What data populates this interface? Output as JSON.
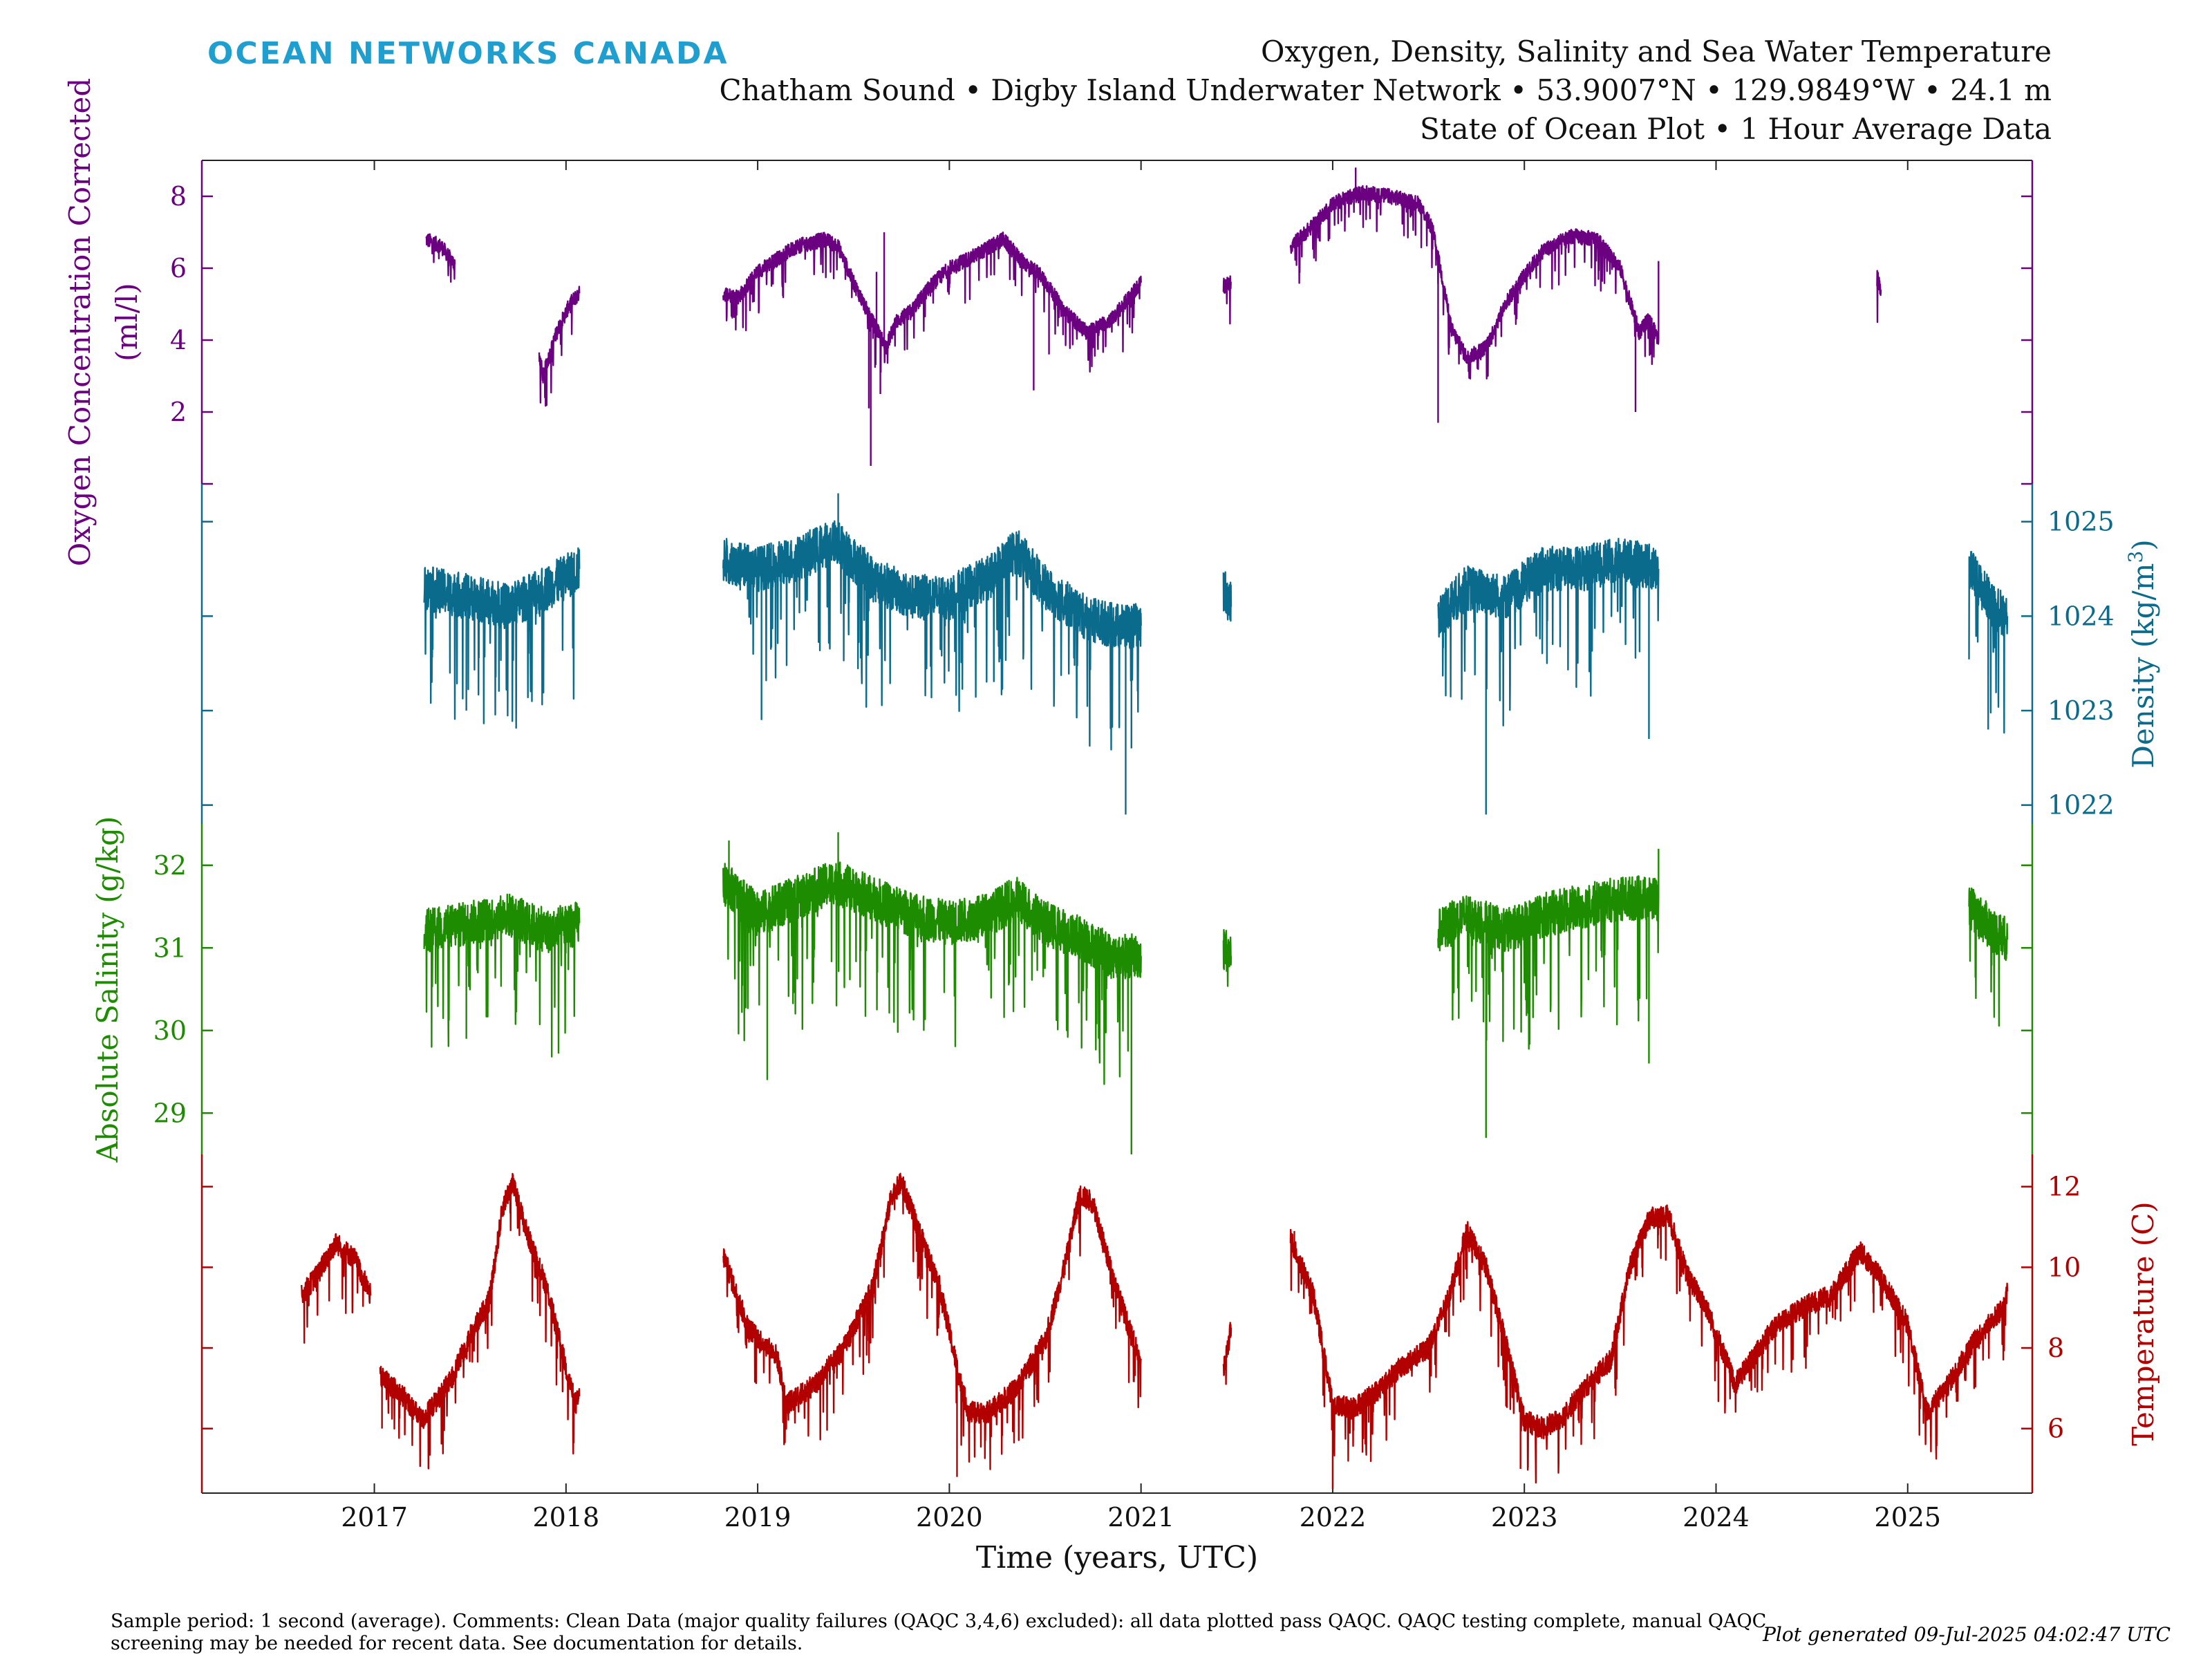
{
  "header": {
    "brand": "OCEAN NETWORKS CANADA",
    "title": "Oxygen, Density, Salinity and Sea Water Temperature",
    "subtitle": "Chatham Sound • Digby Island Underwater Network • 53.9007°N • 129.9849°W • 24.1 m",
    "subtitle2": "State of Ocean Plot • 1 Hour Average Data"
  },
  "footer": {
    "comments": "Sample period: 1 second (average). Comments: Clean Data (major quality failures (QAQC 3,4,6) excluded): all data plotted pass QAQC. QAQC testing complete, manual QAQC screening may be needed for recent data. See documentation for details.",
    "generated": "Plot generated 09-Jul-2025 04:02:47 UTC"
  },
  "colors": {
    "oxygen": "#6b0080",
    "density": "#0a6b8c",
    "salinity": "#1e8c00",
    "temperature": "#b20000",
    "brand": "#1f9fd0"
  },
  "chart_data": {
    "type": "line",
    "xlabel": "Time (years, UTC)",
    "xlim": [
      2016.1,
      2025.65
    ],
    "x_ticks": [
      2017,
      2018,
      2019,
      2020,
      2021,
      2022,
      2023,
      2024,
      2025
    ],
    "x_tick_labels": [
      "2017",
      "2018",
      "2019",
      "2020",
      "2021",
      "2022",
      "2023",
      "2024",
      "2025"
    ],
    "series": [
      {
        "key": "oxygen",
        "name": "Oxygen Concentration Corrected",
        "label": "Oxygen Concentration Corrected",
        "unit": "(ml/l)",
        "axis_side": "left",
        "ylim": [
          0.0,
          9.0
        ],
        "ticks": [
          2,
          4,
          6,
          8
        ],
        "extra_ticks": [
          0
        ],
        "noise": 0.35,
        "segments": [
          [
            [
              2017.27,
              6.8
            ],
            [
              2017.35,
              6.6
            ],
            [
              2017.42,
              6.1
            ]
          ],
          [
            [
              2017.86,
              3.6
            ],
            [
              2017.88,
              3.0
            ],
            [
              2017.95,
              4.2
            ],
            [
              2018.02,
              5.0
            ],
            [
              2018.07,
              5.3
            ]
          ],
          [
            [
              2018.82,
              5.3
            ],
            [
              2018.9,
              5.2
            ],
            [
              2019.0,
              5.9
            ],
            [
              2019.2,
              6.6
            ],
            [
              2019.35,
              6.8
            ],
            [
              2019.42,
              6.6
            ],
            [
              2019.5,
              5.6
            ],
            [
              2019.6,
              4.5
            ],
            [
              2019.67,
              3.8
            ],
            [
              2019.72,
              4.5
            ],
            [
              2019.8,
              4.8
            ],
            [
              2019.9,
              5.5
            ],
            [
              2020.0,
              6.0
            ],
            [
              2020.15,
              6.4
            ],
            [
              2020.28,
              6.8
            ],
            [
              2020.38,
              6.2
            ],
            [
              2020.48,
              5.8
            ],
            [
              2020.6,
              4.8
            ],
            [
              2020.72,
              4.2
            ],
            [
              2020.85,
              4.6
            ],
            [
              2021.0,
              5.6
            ]
          ],
          [
            [
              2021.43,
              5.5
            ],
            [
              2021.47,
              5.6
            ]
          ],
          [
            [
              2021.78,
              6.6
            ],
            [
              2021.9,
              7.2
            ],
            [
              2022.0,
              7.8
            ],
            [
              2022.15,
              8.1
            ],
            [
              2022.3,
              8.0
            ],
            [
              2022.45,
              7.8
            ],
            [
              2022.52,
              7.1
            ],
            [
              2022.58,
              5.5
            ],
            [
              2022.62,
              4.3
            ],
            [
              2022.7,
              3.5
            ],
            [
              2022.8,
              3.8
            ],
            [
              2022.9,
              5.0
            ],
            [
              2023.0,
              5.8
            ],
            [
              2023.1,
              6.5
            ],
            [
              2023.25,
              6.9
            ],
            [
              2023.38,
              6.8
            ],
            [
              2023.5,
              6.0
            ],
            [
              2023.6,
              4.2
            ],
            [
              2023.65,
              4.6
            ],
            [
              2023.7,
              4.0
            ]
          ],
          [
            [
              2024.84,
              5.8
            ],
            [
              2024.86,
              5.4
            ]
          ]
        ],
        "spikes": [
          [
            2019.58,
            2.1
          ],
          [
            2019.59,
            0.5
          ],
          [
            2019.62,
            5.9
          ],
          [
            2019.66,
            7.0
          ],
          [
            2020.44,
            2.6
          ],
          [
            2020.52,
            3.6
          ],
          [
            2022.12,
            8.8
          ],
          [
            2022.55,
            1.7
          ],
          [
            2023.58,
            2.0
          ],
          [
            2023.7,
            6.2
          ],
          [
            2019.64,
            2.5
          ]
        ]
      },
      {
        "key": "density",
        "name": "Density",
        "label": "Density (kg/m",
        "label_sup": "3",
        "label_end": ")",
        "axis_side": "right",
        "ylim": [
          1021.8,
          1025.4
        ],
        "ticks": [
          1022,
          1023,
          1024,
          1025
        ],
        "noise": 0.4,
        "segments": [
          [
            [
              2017.26,
              1024.3
            ],
            [
              2017.5,
              1024.2
            ],
            [
              2017.7,
              1024.1
            ],
            [
              2017.9,
              1024.3
            ],
            [
              2018.07,
              1024.5
            ]
          ],
          [
            [
              2018.82,
              1024.6
            ],
            [
              2019.0,
              1024.5
            ],
            [
              2019.2,
              1024.6
            ],
            [
              2019.4,
              1024.8
            ],
            [
              2019.6,
              1024.4
            ],
            [
              2019.8,
              1024.2
            ],
            [
              2020.0,
              1024.2
            ],
            [
              2020.2,
              1024.4
            ],
            [
              2020.35,
              1024.7
            ],
            [
              2020.5,
              1024.3
            ],
            [
              2020.7,
              1024.0
            ],
            [
              2020.85,
              1023.9
            ],
            [
              2021.0,
              1023.9
            ]
          ],
          [
            [
              2021.43,
              1024.3
            ],
            [
              2021.47,
              1024.1
            ]
          ],
          [
            [
              2022.55,
              1024.0
            ],
            [
              2022.7,
              1024.3
            ],
            [
              2022.9,
              1024.2
            ],
            [
              2023.1,
              1024.5
            ],
            [
              2023.3,
              1024.5
            ],
            [
              2023.5,
              1024.6
            ],
            [
              2023.7,
              1024.5
            ]
          ],
          [
            [
              2025.32,
              1024.5
            ],
            [
              2025.45,
              1024.1
            ],
            [
              2025.52,
              1024.0
            ]
          ]
        ],
        "spikes": [
          [
            2017.48,
            1023.0
          ],
          [
            2017.65,
            1023.2
          ],
          [
            2019.02,
            1022.9
          ],
          [
            2020.95,
            1022.6
          ],
          [
            2020.92,
            1021.9
          ],
          [
            2022.8,
            1021.9
          ],
          [
            2023.65,
            1022.7
          ],
          [
            2025.42,
            1022.8
          ],
          [
            2019.42,
            1025.3
          ]
        ]
      },
      {
        "key": "salinity",
        "name": "Absolute Salinity",
        "label": "Absolute Salinity (g/kg)",
        "axis_side": "left",
        "ylim": [
          28.5,
          32.5
        ],
        "ticks": [
          29,
          30,
          31,
          32
        ],
        "noise": 0.45,
        "segments": [
          [
            [
              2017.26,
              31.2
            ],
            [
              2017.5,
              31.3
            ],
            [
              2017.7,
              31.4
            ],
            [
              2017.9,
              31.2
            ],
            [
              2018.07,
              31.3
            ]
          ],
          [
            [
              2018.82,
              31.8
            ],
            [
              2019.0,
              31.4
            ],
            [
              2019.2,
              31.6
            ],
            [
              2019.4,
              31.8
            ],
            [
              2019.6,
              31.6
            ],
            [
              2019.8,
              31.4
            ],
            [
              2020.0,
              31.3
            ],
            [
              2020.2,
              31.4
            ],
            [
              2020.35,
              31.6
            ],
            [
              2020.5,
              31.3
            ],
            [
              2020.7,
              31.1
            ],
            [
              2020.85,
              30.9
            ],
            [
              2021.0,
              30.9
            ]
          ],
          [
            [
              2021.43,
              31.0
            ],
            [
              2021.47,
              30.9
            ]
          ],
          [
            [
              2022.55,
              31.2
            ],
            [
              2022.7,
              31.4
            ],
            [
              2022.9,
              31.2
            ],
            [
              2023.1,
              31.4
            ],
            [
              2023.3,
              31.5
            ],
            [
              2023.5,
              31.6
            ],
            [
              2023.7,
              31.6
            ]
          ],
          [
            [
              2025.32,
              31.5
            ],
            [
              2025.45,
              31.2
            ],
            [
              2025.52,
              31.1
            ]
          ]
        ],
        "spikes": [
          [
            2017.48,
            29.9
          ],
          [
            2019.05,
            29.4
          ],
          [
            2020.95,
            28.5
          ],
          [
            2022.8,
            28.7
          ],
          [
            2023.65,
            29.6
          ],
          [
            2019.42,
            32.4
          ],
          [
            2018.85,
            32.3
          ],
          [
            2023.7,
            32.2
          ]
        ]
      },
      {
        "key": "temperature",
        "name": "Temperature",
        "label": "Temperature (C)",
        "axis_side": "right",
        "ylim": [
          4.4,
          12.8
        ],
        "ticks": [
          6,
          8,
          10,
          12
        ],
        "noise": 0.45,
        "segments": [
          [
            [
              2016.62,
              9.3
            ],
            [
              2016.7,
              9.8
            ],
            [
              2016.8,
              10.6
            ],
            [
              2016.9,
              10.2
            ],
            [
              2016.98,
              9.3
            ]
          ],
          [
            [
              2017.03,
              7.3
            ],
            [
              2017.15,
              6.8
            ],
            [
              2017.25,
              6.2
            ],
            [
              2017.4,
              7.2
            ],
            [
              2017.5,
              8.3
            ],
            [
              2017.6,
              9.2
            ],
            [
              2017.67,
              11.5
            ],
            [
              2017.72,
              12.1
            ],
            [
              2017.8,
              10.8
            ],
            [
              2017.9,
              9.5
            ],
            [
              2018.0,
              7.5
            ],
            [
              2018.05,
              6.6
            ],
            [
              2018.07,
              6.8
            ]
          ],
          [
            [
              2018.82,
              10.3
            ],
            [
              2018.95,
              8.5
            ],
            [
              2019.1,
              7.8
            ],
            [
              2019.15,
              6.6
            ],
            [
              2019.3,
              7.1
            ],
            [
              2019.45,
              8.0
            ],
            [
              2019.6,
              9.5
            ],
            [
              2019.7,
              11.8
            ],
            [
              2019.75,
              12.1
            ],
            [
              2019.85,
              10.8
            ],
            [
              2019.95,
              9.5
            ],
            [
              2020.05,
              7.3
            ],
            [
              2020.1,
              6.4
            ],
            [
              2020.2,
              6.4
            ],
            [
              2020.35,
              7.0
            ],
            [
              2020.5,
              8.2
            ],
            [
              2020.6,
              10.0
            ],
            [
              2020.68,
              11.8
            ],
            [
              2020.75,
              11.6
            ],
            [
              2020.85,
              9.8
            ],
            [
              2020.95,
              8.3
            ],
            [
              2021.0,
              7.7
            ]
          ],
          [
            [
              2021.43,
              7.4
            ],
            [
              2021.47,
              8.5
            ]
          ],
          [
            [
              2021.78,
              10.7
            ],
            [
              2021.9,
              9.3
            ],
            [
              2022.0,
              6.6
            ],
            [
              2022.1,
              6.5
            ],
            [
              2022.2,
              6.8
            ],
            [
              2022.35,
              7.5
            ],
            [
              2022.5,
              8.0
            ],
            [
              2022.6,
              9.2
            ],
            [
              2022.7,
              10.9
            ],
            [
              2022.8,
              10.0
            ],
            [
              2022.9,
              8.2
            ],
            [
              2023.0,
              6.2
            ],
            [
              2023.1,
              6.0
            ],
            [
              2023.2,
              6.3
            ],
            [
              2023.35,
              7.2
            ],
            [
              2023.45,
              7.7
            ],
            [
              2023.55,
              10.0
            ],
            [
              2023.65,
              11.2
            ],
            [
              2023.75,
              11.3
            ],
            [
              2023.85,
              9.8
            ],
            [
              2023.95,
              9.0
            ],
            [
              2024.1,
              7.1
            ],
            [
              2024.2,
              7.8
            ],
            [
              2024.3,
              8.5
            ],
            [
              2024.45,
              9.0
            ],
            [
              2024.6,
              9.3
            ],
            [
              2024.75,
              10.4
            ],
            [
              2024.85,
              9.8
            ],
            [
              2025.0,
              8.6
            ],
            [
              2025.1,
              6.4
            ],
            [
              2025.2,
              7.0
            ],
            [
              2025.35,
              8.2
            ],
            [
              2025.5,
              9.0
            ],
            [
              2025.52,
              9.4
            ]
          ]
        ],
        "spikes": [
          [
            2017.04,
            6.0
          ],
          [
            2020.04,
            4.8
          ],
          [
            2022.0,
            4.5
          ],
          [
            2022.98,
            5.0
          ],
          [
            2025.12,
            5.8
          ],
          [
            2021.8,
            10.9
          ]
        ]
      }
    ],
    "grid": false,
    "legend": "none"
  }
}
